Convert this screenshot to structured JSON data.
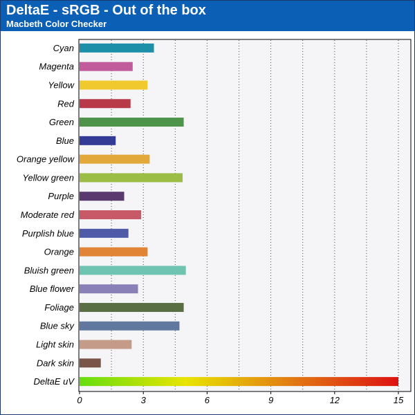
{
  "header": {
    "title": "DeltaE - sRGB - Out of the box",
    "subtitle": "Macbeth Color Checker"
  },
  "colors": {
    "header_bg": "#0b5fb4",
    "plot_bg": "#f5f5f7"
  },
  "chart_data": {
    "type": "bar",
    "orientation": "horizontal",
    "title": "DeltaE - sRGB - Out of the box",
    "subtitle": "Macbeth Color Checker",
    "xlabel": "",
    "ylabel": "",
    "xlim": [
      0,
      15
    ],
    "ticks": [
      "0",
      "3",
      "6",
      "9",
      "12",
      "15"
    ],
    "grid": "vertical dotted",
    "categories": [
      "Cyan",
      "Magenta",
      "Yellow",
      "Red",
      "Green",
      "Blue",
      "Orange yellow",
      "Yellow green",
      "Purple",
      "Moderate red",
      "Purplish blue",
      "Orange",
      "Bluish green",
      "Blue flower",
      "Foliage",
      "Blue sky",
      "Light skin",
      "Dark skin",
      "DeltaE uV"
    ],
    "values": [
      3.5,
      2.5,
      3.2,
      2.4,
      4.9,
      1.7,
      3.3,
      4.85,
      2.1,
      2.9,
      2.3,
      3.2,
      5.0,
      2.75,
      4.9,
      4.7,
      2.45,
      1.0,
      15.0
    ],
    "bar_colors": [
      "#1e8fa8",
      "#c25b9c",
      "#f0c92e",
      "#b83a48",
      "#4d944a",
      "#343b96",
      "#e3a83a",
      "#9bbd45",
      "#5a3a6e",
      "#c75a66",
      "#4e5aa8",
      "#e08436",
      "#6ec4b0",
      "#8a80b8",
      "#596e42",
      "#61789e",
      "#c49a88",
      "#7a5448",
      "gradient"
    ],
    "gradient_stops": [
      "#66dd11",
      "#e8e400",
      "#e27a14",
      "#dd1111"
    ]
  }
}
